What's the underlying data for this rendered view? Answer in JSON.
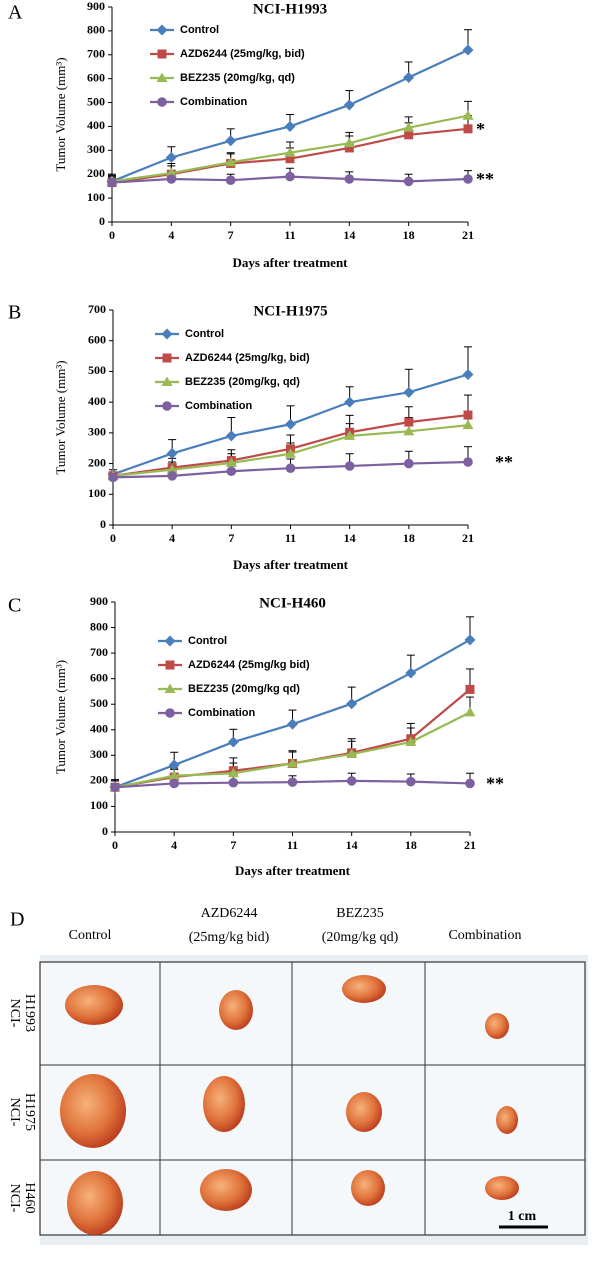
{
  "chart_data": [
    {
      "type": "line",
      "panel": "A",
      "title": "NCI-H1993",
      "x_label": "Days after treatment",
      "y_label": "Tumor Volume (mm³)",
      "categories": [
        "0",
        "4",
        "7",
        "11",
        "14",
        "18",
        "21"
      ],
      "ylim": [
        0,
        900
      ],
      "yticks": [
        0,
        100,
        200,
        300,
        400,
        500,
        600,
        700,
        800,
        900
      ],
      "series": [
        {
          "name": "Control",
          "color": "#4a7ebb",
          "marker": "diamond",
          "values": [
            170,
            270,
            340,
            400,
            490,
            605,
            720
          ],
          "errors": [
            25,
            45,
            50,
            50,
            60,
            65,
            85
          ]
        },
        {
          "name": "AZD6244 (25mg/kg, bid)",
          "color": "#be4b48",
          "marker": "square",
          "values": [
            165,
            200,
            245,
            265,
            310,
            365,
            390
          ],
          "errors": [
            20,
            35,
            40,
            45,
            50,
            50,
            55
          ]
        },
        {
          "name": "BEZ235 (20mg/kg, qd)",
          "color": "#98b954",
          "marker": "triangle",
          "values": [
            170,
            205,
            250,
            290,
            330,
            395,
            445
          ],
          "errors": [
            20,
            40,
            40,
            45,
            45,
            45,
            60
          ]
        },
        {
          "name": "Combination",
          "color": "#7d60a0",
          "marker": "circle",
          "values": [
            165,
            180,
            175,
            190,
            180,
            170,
            180
          ],
          "errors": [
            35,
            30,
            25,
            35,
            30,
            30,
            35
          ]
        }
      ],
      "annotations": [
        "*",
        "**"
      ]
    },
    {
      "type": "line",
      "panel": "B",
      "title": "NCI-H1975",
      "x_label": "Days after treatment",
      "y_label": "Tumor Volume (mm³)",
      "categories": [
        "0",
        "4",
        "7",
        "11",
        "14",
        "18",
        "21"
      ],
      "ylim": [
        0,
        700
      ],
      "yticks": [
        0,
        100,
        200,
        300,
        400,
        500,
        600,
        700
      ],
      "series": [
        {
          "name": "Control",
          "color": "#4a7ebb",
          "marker": "diamond",
          "values": [
            165,
            233,
            290,
            328,
            400,
            432,
            490
          ],
          "errors": [
            15,
            45,
            60,
            60,
            50,
            75,
            90
          ]
        },
        {
          "name": "AZD6244 (25mg/kg, bid)",
          "color": "#be4b48",
          "marker": "square",
          "values": [
            160,
            187,
            210,
            248,
            302,
            335,
            358
          ],
          "errors": [
            10,
            30,
            35,
            45,
            55,
            50,
            65
          ]
        },
        {
          "name": "BEZ235 (20mg/kg, qd)",
          "color": "#98b954",
          "marker": "triangle",
          "values": [
            160,
            180,
            202,
            232,
            290,
            305,
            325
          ],
          "errors": [
            10,
            25,
            30,
            35,
            40,
            45,
            45
          ]
        },
        {
          "name": "Combination",
          "color": "#7d60a0",
          "marker": "circle",
          "values": [
            155,
            160,
            175,
            185,
            192,
            200,
            205
          ],
          "errors": [
            10,
            20,
            30,
            30,
            40,
            40,
            50
          ]
        }
      ],
      "annotations": [
        "**"
      ]
    },
    {
      "type": "line",
      "panel": "C",
      "title": "NCI-H460",
      "x_label": "Days after treatment",
      "y_label": "Tumor Volume (mm³)",
      "categories": [
        "0",
        "4",
        "7",
        "11",
        "14",
        "18",
        "21"
      ],
      "ylim": [
        0,
        900
      ],
      "yticks": [
        0,
        100,
        200,
        300,
        400,
        500,
        600,
        700,
        800,
        900
      ],
      "series": [
        {
          "name": "Control",
          "color": "#4a7ebb",
          "marker": "diamond",
          "values": [
            175,
            262,
            352,
            422,
            502,
            622,
            752
          ],
          "errors": [
            30,
            50,
            50,
            55,
            65,
            70,
            90
          ]
        },
        {
          "name": "AZD6244 (25mg/kg bid)",
          "color": "#be4b48",
          "marker": "square",
          "values": [
            175,
            215,
            240,
            268,
            310,
            365,
            558
          ],
          "errors": [
            25,
            30,
            50,
            50,
            55,
            60,
            80
          ]
        },
        {
          "name": "BEZ235 (20mg/kg qd)",
          "color": "#98b954",
          "marker": "triangle",
          "values": [
            175,
            220,
            230,
            268,
            305,
            352,
            468
          ],
          "errors": [
            25,
            30,
            40,
            45,
            50,
            55,
            60
          ]
        },
        {
          "name": "Combination",
          "color": "#7d60a0",
          "marker": "circle",
          "values": [
            175,
            190,
            193,
            195,
            200,
            197,
            190
          ],
          "errors": [
            25,
            20,
            25,
            25,
            30,
            30,
            40
          ]
        }
      ],
      "annotations": [
        "**"
      ]
    }
  ],
  "photo_panel": {
    "panel": "D",
    "column_headers": [
      [
        "Control"
      ],
      [
        "AZD6244",
        "(25mg/kg bid)"
      ],
      [
        "BEZ235",
        "(20mg/kg qd)"
      ],
      [
        "Combination"
      ]
    ],
    "row_labels": [
      [
        "NCI-",
        "H1993"
      ],
      [
        "NCI-",
        "H1975"
      ],
      [
        "NCI-",
        "H460"
      ]
    ],
    "scale_bar": "1 cm"
  }
}
